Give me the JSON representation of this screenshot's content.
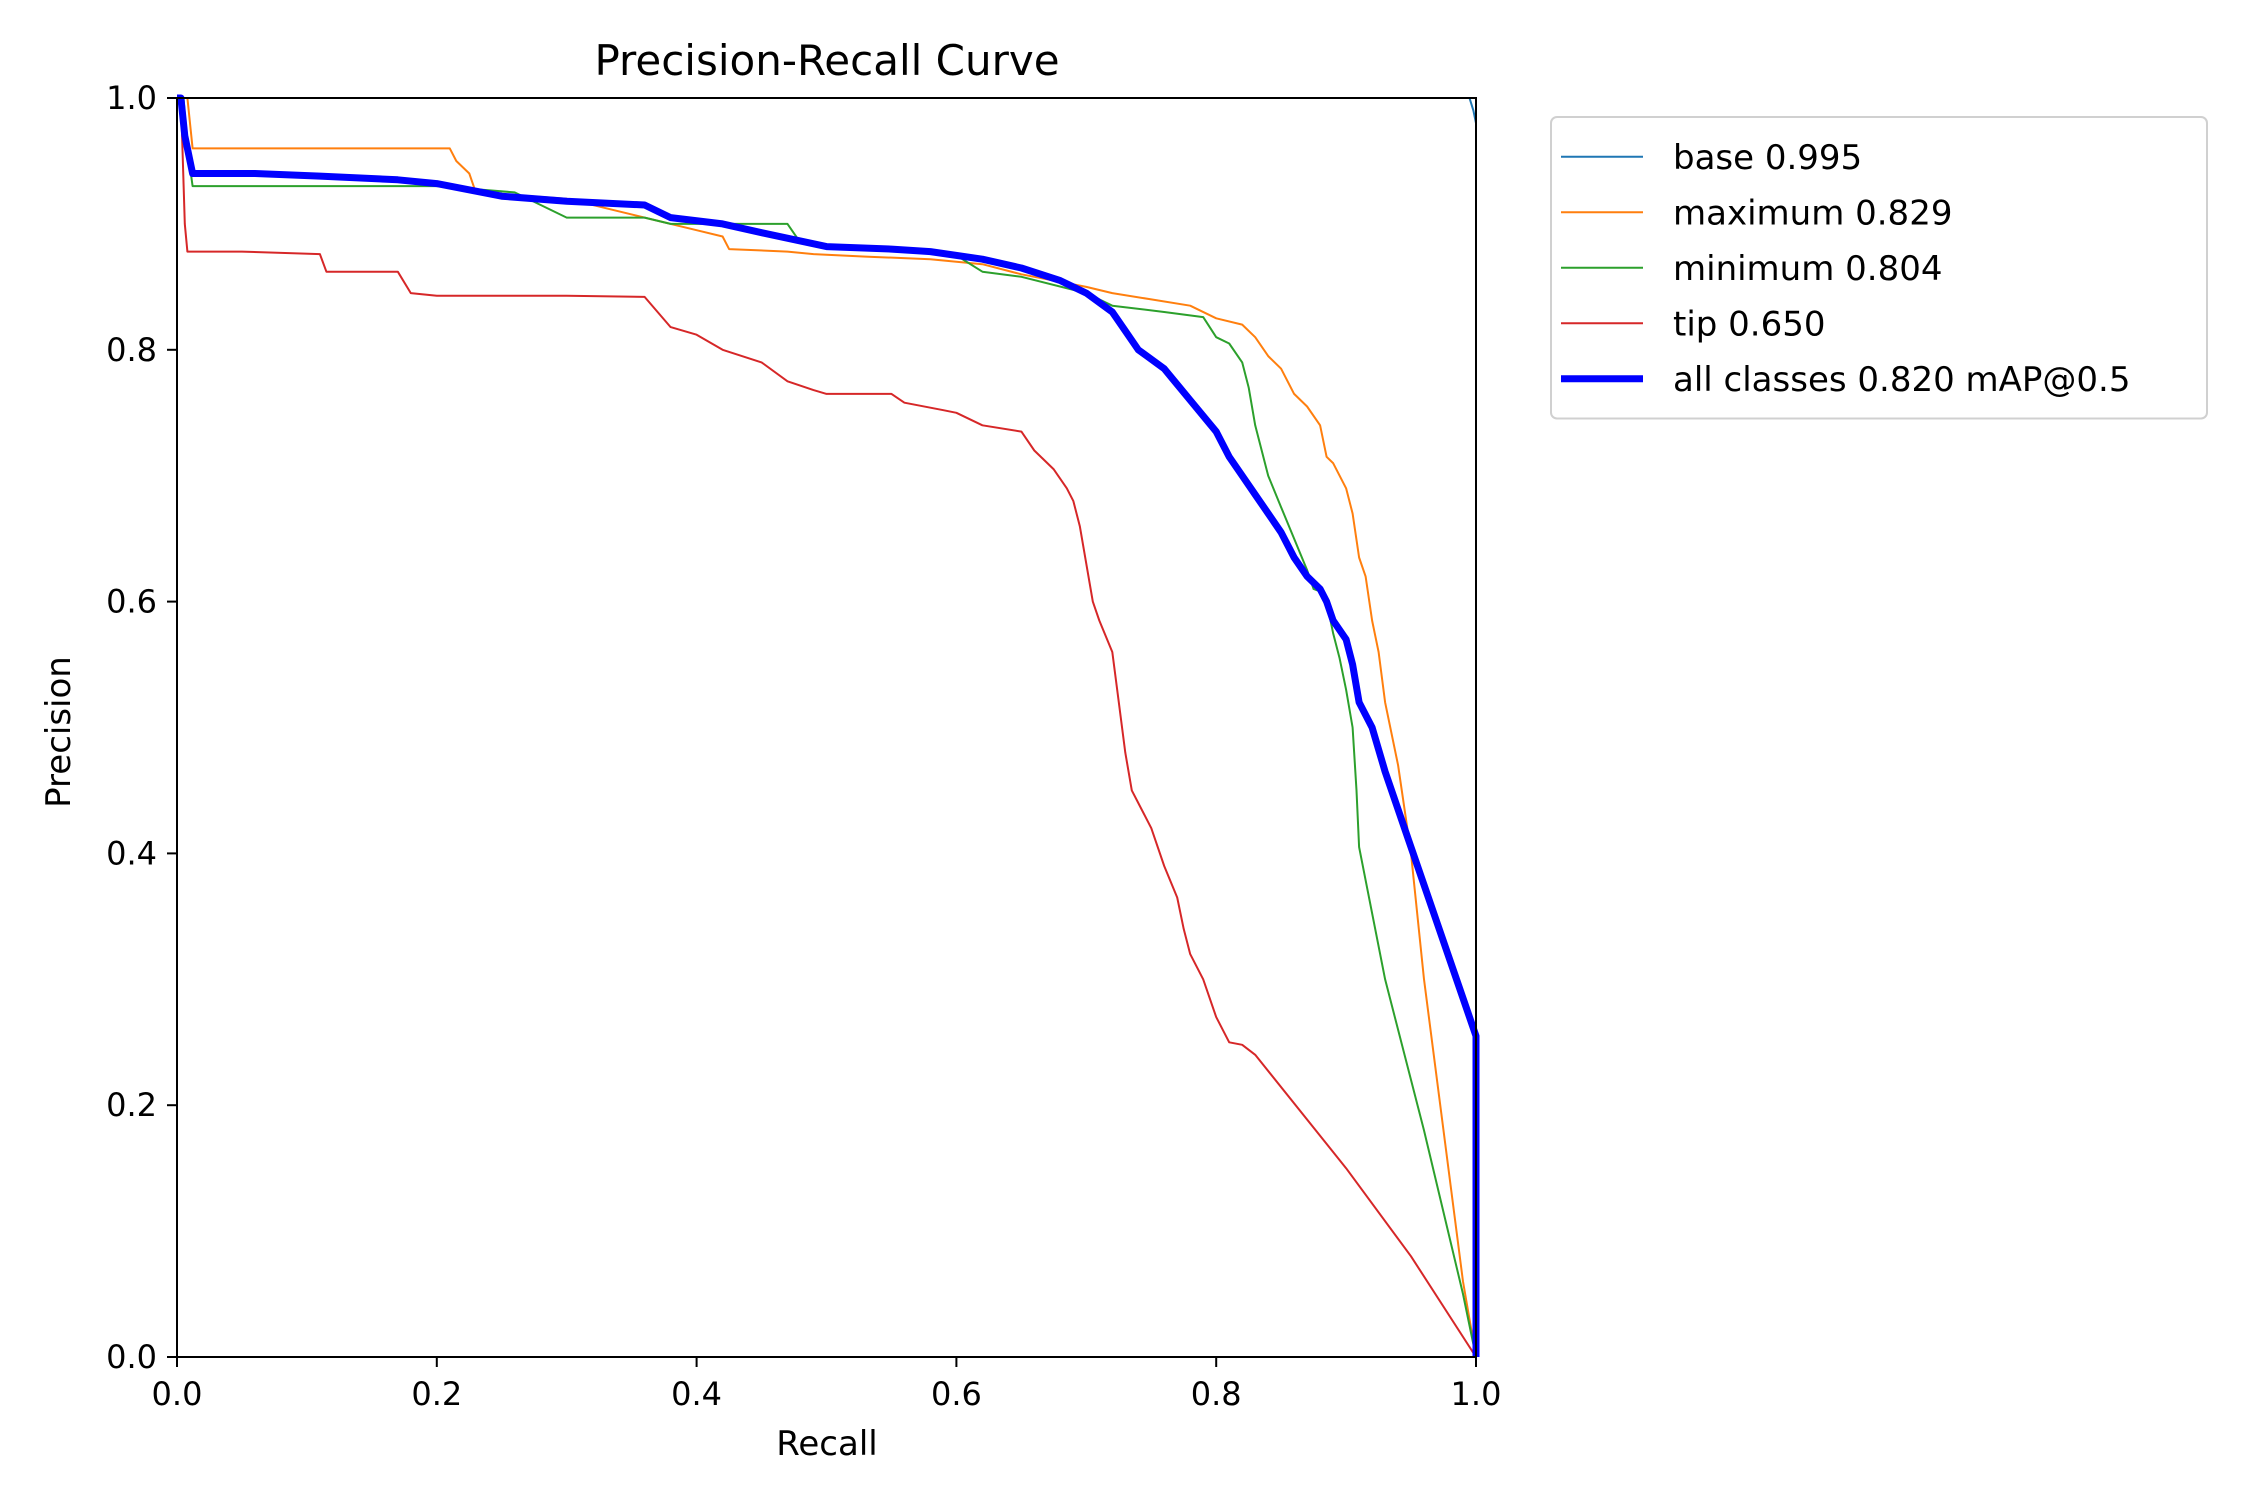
{
  "chart_data": {
    "type": "line",
    "title": "Precision-Recall Curve",
    "xlabel": "Recall",
    "ylabel": "Precision",
    "xlim": [
      0,
      1
    ],
    "ylim": [
      0,
      1
    ],
    "x_ticks": [
      "0.0",
      "0.2",
      "0.4",
      "0.6",
      "0.8",
      "1.0"
    ],
    "y_ticks": [
      "0.0",
      "0.2",
      "0.4",
      "0.6",
      "0.8",
      "1.0"
    ],
    "grid": false,
    "legend_position": "outside-top-right",
    "series": [
      {
        "name": "base 0.995",
        "color": "#1f77b4",
        "width": 2,
        "points": [
          [
            0.0,
            1.0
          ],
          [
            0.995,
            1.0
          ],
          [
            0.998,
            0.99
          ],
          [
            1.0,
            0.98
          ],
          [
            1.0,
            0.0
          ]
        ]
      },
      {
        "name": "maximum 0.829",
        "color": "#ff7f0e",
        "width": 2,
        "points": [
          [
            0.0,
            1.0
          ],
          [
            0.008,
            1.0
          ],
          [
            0.012,
            0.96
          ],
          [
            0.12,
            0.96
          ],
          [
            0.21,
            0.96
          ],
          [
            0.215,
            0.95
          ],
          [
            0.225,
            0.94
          ],
          [
            0.23,
            0.925
          ],
          [
            0.3,
            0.92
          ],
          [
            0.36,
            0.905
          ],
          [
            0.4,
            0.895
          ],
          [
            0.42,
            0.89
          ],
          [
            0.425,
            0.88
          ],
          [
            0.47,
            0.878
          ],
          [
            0.49,
            0.876
          ],
          [
            0.53,
            0.874
          ],
          [
            0.58,
            0.872
          ],
          [
            0.62,
            0.868
          ],
          [
            0.65,
            0.86
          ],
          [
            0.7,
            0.85
          ],
          [
            0.72,
            0.845
          ],
          [
            0.75,
            0.84
          ],
          [
            0.78,
            0.835
          ],
          [
            0.8,
            0.825
          ],
          [
            0.82,
            0.82
          ],
          [
            0.83,
            0.81
          ],
          [
            0.84,
            0.795
          ],
          [
            0.85,
            0.785
          ],
          [
            0.86,
            0.765
          ],
          [
            0.87,
            0.755
          ],
          [
            0.88,
            0.74
          ],
          [
            0.885,
            0.715
          ],
          [
            0.89,
            0.71
          ],
          [
            0.9,
            0.69
          ],
          [
            0.905,
            0.67
          ],
          [
            0.91,
            0.635
          ],
          [
            0.915,
            0.62
          ],
          [
            0.92,
            0.585
          ],
          [
            0.925,
            0.56
          ],
          [
            0.93,
            0.52
          ],
          [
            0.94,
            0.47
          ],
          [
            0.95,
            0.4
          ],
          [
            0.96,
            0.3
          ],
          [
            0.975,
            0.18
          ],
          [
            0.99,
            0.06
          ],
          [
            1.0,
            0.0
          ]
        ]
      },
      {
        "name": "minimum 0.804",
        "color": "#2ca02c",
        "width": 2,
        "points": [
          [
            0.0,
            1.0
          ],
          [
            0.005,
            1.0
          ],
          [
            0.008,
            0.96
          ],
          [
            0.012,
            0.93
          ],
          [
            0.1,
            0.93
          ],
          [
            0.2,
            0.93
          ],
          [
            0.26,
            0.925
          ],
          [
            0.3,
            0.905
          ],
          [
            0.36,
            0.905
          ],
          [
            0.38,
            0.9
          ],
          [
            0.47,
            0.9
          ],
          [
            0.48,
            0.885
          ],
          [
            0.55,
            0.88
          ],
          [
            0.6,
            0.875
          ],
          [
            0.62,
            0.862
          ],
          [
            0.65,
            0.858
          ],
          [
            0.7,
            0.845
          ],
          [
            0.72,
            0.835
          ],
          [
            0.76,
            0.83
          ],
          [
            0.79,
            0.826
          ],
          [
            0.8,
            0.81
          ],
          [
            0.81,
            0.805
          ],
          [
            0.82,
            0.79
          ],
          [
            0.825,
            0.77
          ],
          [
            0.83,
            0.74
          ],
          [
            0.835,
            0.72
          ],
          [
            0.84,
            0.7
          ],
          [
            0.85,
            0.675
          ],
          [
            0.86,
            0.65
          ],
          [
            0.87,
            0.625
          ],
          [
            0.875,
            0.61
          ],
          [
            0.88,
            0.608
          ],
          [
            0.885,
            0.6
          ],
          [
            0.89,
            0.575
          ],
          [
            0.895,
            0.555
          ],
          [
            0.9,
            0.53
          ],
          [
            0.905,
            0.5
          ],
          [
            0.908,
            0.45
          ],
          [
            0.91,
            0.405
          ],
          [
            0.93,
            0.3
          ],
          [
            0.96,
            0.18
          ],
          [
            0.99,
            0.05
          ],
          [
            1.0,
            0.0
          ]
        ]
      },
      {
        "name": "tip 0.650",
        "color": "#d62728",
        "width": 2,
        "points": [
          [
            0.0,
            1.0
          ],
          [
            0.003,
            1.0
          ],
          [
            0.006,
            0.9
          ],
          [
            0.008,
            0.878
          ],
          [
            0.05,
            0.878
          ],
          [
            0.11,
            0.876
          ],
          [
            0.115,
            0.862
          ],
          [
            0.17,
            0.862
          ],
          [
            0.18,
            0.845
          ],
          [
            0.2,
            0.843
          ],
          [
            0.25,
            0.843
          ],
          [
            0.3,
            0.843
          ],
          [
            0.36,
            0.842
          ],
          [
            0.37,
            0.83
          ],
          [
            0.38,
            0.818
          ],
          [
            0.4,
            0.812
          ],
          [
            0.42,
            0.8
          ],
          [
            0.45,
            0.79
          ],
          [
            0.47,
            0.775
          ],
          [
            0.49,
            0.768
          ],
          [
            0.5,
            0.765
          ],
          [
            0.55,
            0.765
          ],
          [
            0.56,
            0.758
          ],
          [
            0.59,
            0.752
          ],
          [
            0.6,
            0.75
          ],
          [
            0.62,
            0.74
          ],
          [
            0.65,
            0.735
          ],
          [
            0.66,
            0.72
          ],
          [
            0.675,
            0.705
          ],
          [
            0.685,
            0.69
          ],
          [
            0.69,
            0.68
          ],
          [
            0.695,
            0.66
          ],
          [
            0.7,
            0.63
          ],
          [
            0.705,
            0.6
          ],
          [
            0.71,
            0.585
          ],
          [
            0.72,
            0.56
          ],
          [
            0.725,
            0.52
          ],
          [
            0.73,
            0.48
          ],
          [
            0.735,
            0.45
          ],
          [
            0.74,
            0.44
          ],
          [
            0.75,
            0.42
          ],
          [
            0.76,
            0.39
          ],
          [
            0.77,
            0.365
          ],
          [
            0.775,
            0.34
          ],
          [
            0.78,
            0.32
          ],
          [
            0.79,
            0.3
          ],
          [
            0.8,
            0.27
          ],
          [
            0.81,
            0.25
          ],
          [
            0.82,
            0.248
          ],
          [
            0.83,
            0.24
          ],
          [
            0.9,
            0.15
          ],
          [
            0.95,
            0.08
          ],
          [
            1.0,
            0.0
          ]
        ]
      },
      {
        "name": "all classes 0.820 mAP@0.5",
        "color": "#0000ff",
        "width": 7,
        "points": [
          [
            0.0,
            1.0
          ],
          [
            0.003,
            1.0
          ],
          [
            0.006,
            0.97
          ],
          [
            0.012,
            0.94
          ],
          [
            0.06,
            0.94
          ],
          [
            0.11,
            0.938
          ],
          [
            0.17,
            0.935
          ],
          [
            0.2,
            0.932
          ],
          [
            0.25,
            0.922
          ],
          [
            0.3,
            0.918
          ],
          [
            0.36,
            0.915
          ],
          [
            0.38,
            0.905
          ],
          [
            0.42,
            0.9
          ],
          [
            0.45,
            0.893
          ],
          [
            0.5,
            0.882
          ],
          [
            0.55,
            0.88
          ],
          [
            0.58,
            0.878
          ],
          [
            0.62,
            0.872
          ],
          [
            0.65,
            0.865
          ],
          [
            0.68,
            0.855
          ],
          [
            0.7,
            0.845
          ],
          [
            0.72,
            0.83
          ],
          [
            0.73,
            0.815
          ],
          [
            0.74,
            0.8
          ],
          [
            0.76,
            0.785
          ],
          [
            0.78,
            0.76
          ],
          [
            0.8,
            0.735
          ],
          [
            0.81,
            0.715
          ],
          [
            0.82,
            0.7
          ],
          [
            0.83,
            0.685
          ],
          [
            0.84,
            0.67
          ],
          [
            0.85,
            0.655
          ],
          [
            0.86,
            0.635
          ],
          [
            0.87,
            0.62
          ],
          [
            0.88,
            0.61
          ],
          [
            0.885,
            0.6
          ],
          [
            0.89,
            0.585
          ],
          [
            0.9,
            0.57
          ],
          [
            0.905,
            0.55
          ],
          [
            0.91,
            0.52
          ],
          [
            0.92,
            0.5
          ],
          [
            0.93,
            0.465
          ],
          [
            0.95,
            0.405
          ],
          [
            0.97,
            0.345
          ],
          [
            0.99,
            0.285
          ],
          [
            1.0,
            0.255
          ],
          [
            1.0,
            0.0
          ]
        ]
      }
    ]
  }
}
